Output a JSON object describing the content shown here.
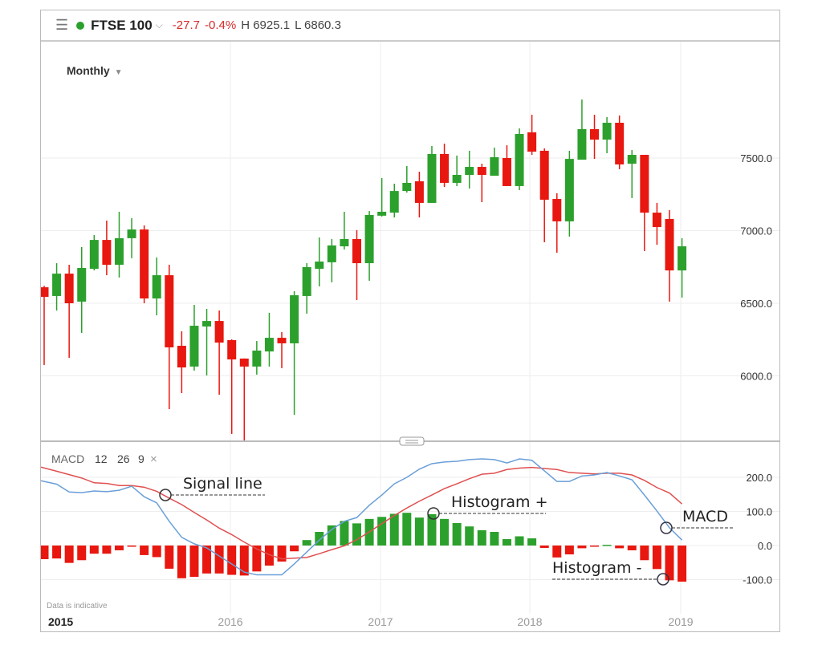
{
  "header": {
    "menu_icon": "hamburger-menu-icon",
    "status_color": "#2ca02c",
    "symbol": "FTSE 100",
    "change": "-27.7",
    "change_pct": "-0.4%",
    "high": "H 6925.1",
    "low": "L 6860.3"
  },
  "period": {
    "label": "Monthly"
  },
  "macd_panel": {
    "label": "MACD",
    "fast": "12",
    "slow": "26",
    "signal": "9",
    "close_icon": "×",
    "disclaimer": "Data is indicative"
  },
  "annotations": {
    "signal": "Signal line",
    "hist_pos": "Histogram +",
    "macd": "MACD",
    "hist_neg": "Histogram -"
  },
  "colors": {
    "up": "#2ca02c",
    "down": "#e8170f",
    "macd": "#6a9fd8",
    "signal": "#e05050"
  },
  "chart_data": [
    {
      "type": "candlestick",
      "title": "FTSE 100 Monthly",
      "start_month": "2014-10",
      "x_ticks": [
        "2015",
        "2016",
        "2017",
        "2018",
        "2019"
      ],
      "y_ticks": [
        "6000.0",
        "6500.0",
        "7000.0",
        "7500.0"
      ],
      "ylim": [
        5550,
        7950
      ],
      "ohlc": [
        [
          6610,
          6620,
          6075,
          6544
        ],
        [
          6550,
          6776,
          6450,
          6704
        ],
        [
          6704,
          6765,
          6124,
          6500
        ],
        [
          6511,
          6887,
          6296,
          6743
        ],
        [
          6737,
          6970,
          6726,
          6936
        ],
        [
          6936,
          7069,
          6693,
          6765
        ],
        [
          6765,
          7130,
          6677,
          6948
        ],
        [
          6948,
          7086,
          6810,
          7008
        ],
        [
          7008,
          7036,
          6500,
          6533
        ],
        [
          6533,
          6815,
          6417,
          6693
        ],
        [
          6693,
          6765,
          5771,
          6196
        ],
        [
          6207,
          6307,
          5881,
          6058
        ],
        [
          6064,
          6489,
          6036,
          6345
        ],
        [
          6340,
          6461,
          6003,
          6378
        ],
        [
          6378,
          6450,
          5870,
          6229
        ],
        [
          6246,
          6251,
          5600,
          6113
        ],
        [
          6119,
          6120,
          5550,
          6064
        ],
        [
          6064,
          6240,
          6008,
          6174
        ],
        [
          6168,
          6434,
          6064,
          6262
        ],
        [
          6262,
          6301,
          6053,
          6224
        ],
        [
          6224,
          6583,
          5732,
          6555
        ],
        [
          6550,
          6776,
          6428,
          6749
        ],
        [
          6737,
          6953,
          6616,
          6787
        ],
        [
          6782,
          6942,
          6644,
          6898
        ],
        [
          6892,
          7130,
          6870,
          6942
        ],
        [
          6942,
          7003,
          6522,
          6776
        ],
        [
          6776,
          7135,
          6655,
          7108
        ],
        [
          7103,
          7362,
          7097,
          7130
        ],
        [
          7124,
          7323,
          7091,
          7273
        ],
        [
          7273,
          7445,
          7262,
          7329
        ],
        [
          7340,
          7406,
          7091,
          7191
        ],
        [
          7191,
          7583,
          7191,
          7528
        ],
        [
          7528,
          7599,
          7301,
          7329
        ],
        [
          7329,
          7517,
          7307,
          7384
        ],
        [
          7384,
          7550,
          7290,
          7439
        ],
        [
          7439,
          7461,
          7196,
          7384
        ],
        [
          7378,
          7572,
          7378,
          7506
        ],
        [
          7500,
          7588,
          7307,
          7307
        ],
        [
          7307,
          7704,
          7279,
          7666
        ],
        [
          7677,
          7798,
          7522,
          7544
        ],
        [
          7550,
          7566,
          6920,
          7213
        ],
        [
          7218,
          7257,
          6848,
          7064
        ],
        [
          7064,
          7550,
          6959,
          7494
        ],
        [
          7489,
          7903,
          7489,
          7699
        ],
        [
          7699,
          7798,
          7494,
          7627
        ],
        [
          7627,
          7782,
          7533,
          7743
        ],
        [
          7743,
          7793,
          7423,
          7456
        ],
        [
          7461,
          7555,
          7224,
          7522
        ],
        [
          7522,
          7522,
          6859,
          7124
        ],
        [
          7124,
          7191,
          6903,
          7025
        ],
        [
          7080,
          7141,
          6511,
          6726
        ],
        [
          6726,
          6948,
          6539,
          6892
        ]
      ]
    },
    {
      "type": "macd",
      "y_ticks": [
        "200.0",
        "100.0",
        "0.0",
        "-100.0"
      ],
      "ylim": [
        -200,
        270
      ],
      "macd": [
        190,
        180,
        157,
        155,
        160,
        158,
        162,
        174,
        143,
        125,
        71,
        24,
        5,
        -7,
        -31,
        -54,
        -78,
        -86,
        -86,
        -86,
        -54,
        -19,
        16,
        47,
        71,
        82,
        118,
        148,
        181,
        200,
        224,
        240,
        245,
        247,
        252,
        254,
        252,
        242,
        254,
        250,
        219,
        188,
        188,
        204,
        207,
        214,
        204,
        193,
        148,
        101,
        52,
        16
      ],
      "signal": [
        230,
        218,
        208,
        198,
        184,
        182,
        176,
        176,
        171,
        159,
        139,
        120,
        97,
        75,
        51,
        32,
        10,
        -10,
        -27,
        -39,
        -37,
        -35,
        -24,
        -12,
        -1,
        17,
        40,
        64,
        88,
        110,
        130,
        148,
        167,
        181,
        196,
        209,
        212,
        223,
        227,
        229,
        226,
        223,
        214,
        212,
        210,
        212,
        212,
        207,
        191,
        170,
        154,
        122
      ],
      "histogram": [
        -40,
        -38,
        -51,
        -43,
        -24,
        -24,
        -14,
        -2,
        -28,
        -34,
        -68,
        -96,
        -92,
        -82,
        -82,
        -86,
        -88,
        -76,
        -59,
        -47,
        -17,
        16,
        40,
        59,
        72,
        65,
        78,
        84,
        93,
        96,
        82,
        92,
        78,
        66,
        56,
        45,
        40,
        19,
        27,
        21,
        -7,
        -35,
        -26,
        -8,
        -3,
        2,
        -8,
        -14,
        -43,
        -69,
        -102,
        -106
      ]
    }
  ]
}
